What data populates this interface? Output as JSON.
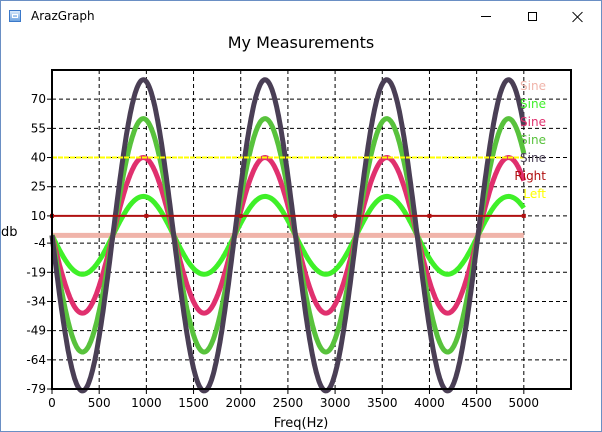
{
  "window": {
    "title": "ArazGraph",
    "icon": "app-graph-icon",
    "buttons": {
      "minimize": "minimize-icon",
      "maximize": "maximize-icon",
      "close": "close-icon"
    }
  },
  "chart_data": {
    "type": "line",
    "title": "My Measurements",
    "xlabel": "Freq(Hz)",
    "ylabel": "db",
    "xlim": [
      0,
      5500
    ],
    "ylim": [
      -79,
      85
    ],
    "xticks": [
      "0",
      "500",
      "1000",
      "1500",
      "2000",
      "2500",
      "3000",
      "3500",
      "4000",
      "4500",
      "5000"
    ],
    "xtick_values": [
      0,
      500,
      1000,
      1500,
      2000,
      2500,
      3000,
      3500,
      4000,
      4500,
      5000
    ],
    "yticks": [
      "70",
      "55",
      "40",
      "25",
      "10",
      "-4",
      "-19",
      "-34",
      "-49",
      "-64",
      "-79"
    ],
    "ytick_values": [
      70,
      55,
      40,
      25,
      10,
      -4,
      -19,
      -34,
      -49,
      -64,
      -79
    ],
    "grid": true,
    "legend_position": "top-right",
    "wave_period_hz": 1290,
    "wave_x_range": [
      0,
      5000
    ],
    "series": [
      {
        "name": "Sine",
        "kind": "flat",
        "value": 0,
        "color": "#f0b4aa"
      },
      {
        "name": "Sine",
        "kind": "sine",
        "amplitude": 20,
        "color": "#3ff028"
      },
      {
        "name": "Sine",
        "kind": "sine",
        "amplitude": 40,
        "color": "#e0306e"
      },
      {
        "name": "Sine",
        "kind": "sine",
        "amplitude": 60,
        "color": "#58c23c"
      },
      {
        "name": "Sine",
        "kind": "sine",
        "amplitude": 80,
        "color": "#4a3f55"
      },
      {
        "name": "Right",
        "kind": "flat",
        "value": 10,
        "color": "#b01010"
      },
      {
        "name": "Left",
        "kind": "flat",
        "value": 40,
        "color": "#ffff00"
      }
    ]
  }
}
